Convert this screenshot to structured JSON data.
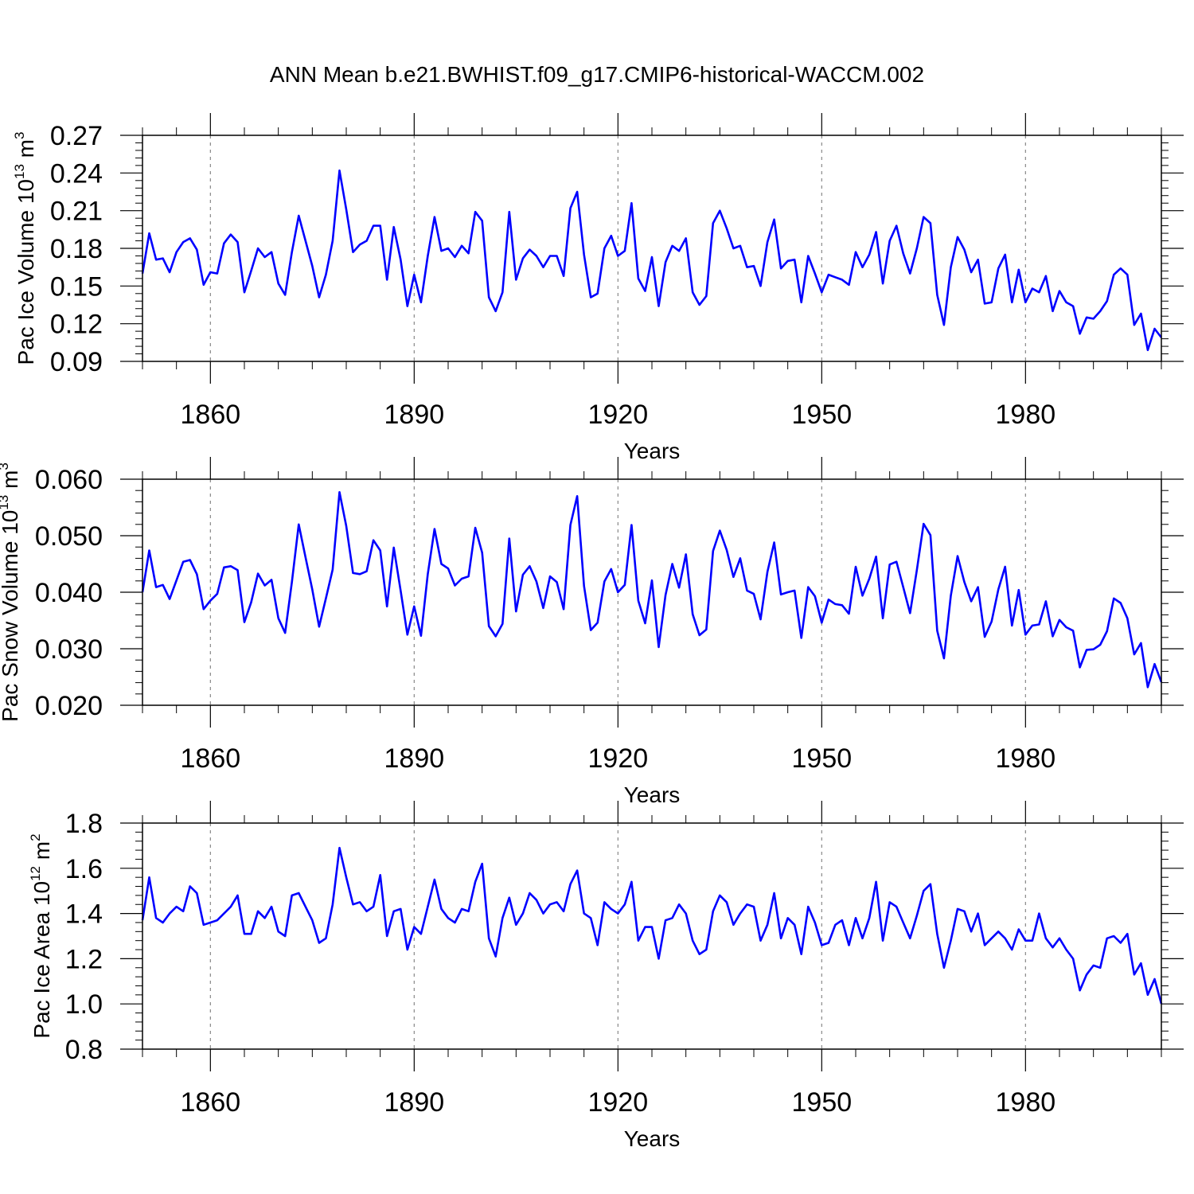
{
  "title": "ANN Mean b.e21.BWHIST.f09_g17.CMIP6-historical-WACCM.002",
  "line_color": "#0000ff",
  "chart_data": [
    {
      "type": "line",
      "ylabel": "Pac Ice Volume 10",
      "ylabel_exp": "13",
      "ylabel_unit": "m",
      "ylabel_unit_exp": "3",
      "xlabel": "Years",
      "xlim": [
        1850,
        2000
      ],
      "ylim": [
        0.09,
        0.27
      ],
      "yticks": [
        0.09,
        0.12,
        0.15,
        0.18,
        0.21,
        0.24,
        0.27
      ],
      "ytick_labels": [
        "0.09",
        "0.12",
        "0.15",
        "0.18",
        "0.21",
        "0.24",
        "0.27"
      ],
      "xticks": [
        1860,
        1890,
        1920,
        1950,
        1980
      ],
      "xtick_labels": [
        "1860",
        "1890",
        "1920",
        "1950",
        "1980"
      ],
      "x_start": 1850,
      "values": [
        0.16,
        0.192,
        0.171,
        0.172,
        0.161,
        0.177,
        0.185,
        0.188,
        0.179,
        0.151,
        0.161,
        0.16,
        0.184,
        0.191,
        0.185,
        0.145,
        0.162,
        0.18,
        0.173,
        0.177,
        0.152,
        0.143,
        0.177,
        0.206,
        0.186,
        0.166,
        0.141,
        0.159,
        0.186,
        0.242,
        0.211,
        0.177,
        0.183,
        0.186,
        0.198,
        0.198,
        0.155,
        0.197,
        0.171,
        0.134,
        0.159,
        0.137,
        0.174,
        0.205,
        0.178,
        0.18,
        0.173,
        0.182,
        0.176,
        0.209,
        0.202,
        0.141,
        0.13,
        0.145,
        0.209,
        0.155,
        0.172,
        0.179,
        0.174,
        0.165,
        0.174,
        0.174,
        0.158,
        0.212,
        0.225,
        0.175,
        0.141,
        0.144,
        0.18,
        0.19,
        0.174,
        0.178,
        0.216,
        0.156,
        0.146,
        0.173,
        0.134,
        0.169,
        0.182,
        0.178,
        0.188,
        0.145,
        0.135,
        0.142,
        0.2,
        0.21,
        0.196,
        0.18,
        0.182,
        0.165,
        0.166,
        0.15,
        0.185,
        0.203,
        0.164,
        0.17,
        0.171,
        0.137,
        0.174,
        0.16,
        0.145,
        0.159,
        0.157,
        0.155,
        0.151,
        0.177,
        0.165,
        0.175,
        0.193,
        0.152,
        0.186,
        0.198,
        0.176,
        0.16,
        0.18,
        0.205,
        0.2,
        0.143,
        0.119,
        0.165,
        0.189,
        0.179,
        0.161,
        0.171,
        0.136,
        0.137,
        0.164,
        0.175,
        0.137,
        0.163,
        0.137,
        0.148,
        0.145,
        0.158,
        0.13,
        0.146,
        0.137,
        0.134,
        0.112,
        0.125,
        0.124,
        0.13,
        0.138,
        0.159,
        0.164,
        0.159,
        0.119,
        0.128,
        0.099,
        0.116,
        0.109
      ]
    },
    {
      "type": "line",
      "ylabel": "Pac Snow Volume 10",
      "ylabel_exp": "13",
      "ylabel_unit": "m",
      "ylabel_unit_exp": "3",
      "xlabel": "Years",
      "xlim": [
        1850,
        2000
      ],
      "ylim": [
        0.02,
        0.06
      ],
      "yticks": [
        0.02,
        0.03,
        0.04,
        0.05,
        0.06
      ],
      "ytick_labels": [
        "0.020",
        "0.030",
        "0.040",
        "0.050",
        "0.060"
      ],
      "xticks": [
        1860,
        1890,
        1920,
        1950,
        1980
      ],
      "xtick_labels": [
        "1860",
        "1890",
        "1920",
        "1950",
        "1980"
      ],
      "x_start": 1850,
      "values": [
        0.04,
        0.0474,
        0.0409,
        0.0413,
        0.0388,
        0.0421,
        0.0454,
        0.0457,
        0.0432,
        0.037,
        0.0385,
        0.0397,
        0.0444,
        0.0446,
        0.0439,
        0.0347,
        0.0382,
        0.0433,
        0.0412,
        0.0422,
        0.0354,
        0.0328,
        0.0418,
        0.052,
        0.0462,
        0.0405,
        0.0339,
        0.0389,
        0.044,
        0.0577,
        0.0517,
        0.0434,
        0.0432,
        0.0437,
        0.0492,
        0.0474,
        0.0375,
        0.0479,
        0.0403,
        0.0325,
        0.0375,
        0.0323,
        0.0432,
        0.0512,
        0.045,
        0.0442,
        0.0412,
        0.0424,
        0.0428,
        0.0514,
        0.047,
        0.034,
        0.0322,
        0.0344,
        0.0495,
        0.0366,
        0.0431,
        0.0446,
        0.0419,
        0.0372,
        0.0428,
        0.0418,
        0.037,
        0.0519,
        0.057,
        0.0411,
        0.0333,
        0.0346,
        0.0419,
        0.0441,
        0.04,
        0.0413,
        0.0519,
        0.0385,
        0.0345,
        0.0421,
        0.0303,
        0.0395,
        0.045,
        0.0408,
        0.0467,
        0.0361,
        0.0324,
        0.0334,
        0.0473,
        0.0509,
        0.0475,
        0.0427,
        0.046,
        0.0403,
        0.0397,
        0.0352,
        0.0436,
        0.0488,
        0.0396,
        0.04,
        0.0403,
        0.0319,
        0.0409,
        0.0393,
        0.0346,
        0.0387,
        0.0379,
        0.0377,
        0.0362,
        0.0445,
        0.0394,
        0.0424,
        0.0463,
        0.0354,
        0.0449,
        0.0454,
        0.0409,
        0.0363,
        0.0439,
        0.0521,
        0.0501,
        0.0332,
        0.0283,
        0.0394,
        0.0464,
        0.0418,
        0.0384,
        0.0409,
        0.0321,
        0.0348,
        0.0405,
        0.0445,
        0.0341,
        0.0404,
        0.0325,
        0.0341,
        0.0343,
        0.0384,
        0.0322,
        0.0351,
        0.0338,
        0.0332,
        0.0267,
        0.0298,
        0.0299,
        0.0307,
        0.0331,
        0.0389,
        0.0381,
        0.0354,
        0.029,
        0.031,
        0.0232,
        0.0273,
        0.0241
      ]
    },
    {
      "type": "line",
      "ylabel": "Pac Ice Area 10",
      "ylabel_exp": "12",
      "ylabel_unit": "m",
      "ylabel_unit_exp": "2",
      "xlabel": "Years",
      "xlim": [
        1850,
        2000
      ],
      "ylim": [
        0.8,
        1.8
      ],
      "yticks": [
        0.8,
        1.0,
        1.2,
        1.4,
        1.6,
        1.8
      ],
      "ytick_labels": [
        "0.8",
        "1.0",
        "1.2",
        "1.4",
        "1.6",
        "1.8"
      ],
      "xticks": [
        1860,
        1890,
        1920,
        1950,
        1980
      ],
      "xtick_labels": [
        "1860",
        "1890",
        "1920",
        "1950",
        "1980"
      ],
      "x_start": 1850,
      "values": [
        1.37,
        1.56,
        1.38,
        1.36,
        1.4,
        1.43,
        1.41,
        1.52,
        1.49,
        1.35,
        1.36,
        1.37,
        1.4,
        1.43,
        1.48,
        1.31,
        1.31,
        1.41,
        1.38,
        1.43,
        1.32,
        1.3,
        1.48,
        1.49,
        1.43,
        1.37,
        1.27,
        1.29,
        1.44,
        1.69,
        1.56,
        1.44,
        1.45,
        1.41,
        1.43,
        1.57,
        1.3,
        1.41,
        1.42,
        1.24,
        1.34,
        1.31,
        1.43,
        1.55,
        1.42,
        1.38,
        1.36,
        1.42,
        1.41,
        1.54,
        1.62,
        1.29,
        1.21,
        1.38,
        1.47,
        1.35,
        1.4,
        1.49,
        1.46,
        1.4,
        1.44,
        1.45,
        1.41,
        1.53,
        1.59,
        1.4,
        1.38,
        1.26,
        1.45,
        1.42,
        1.4,
        1.44,
        1.54,
        1.28,
        1.34,
        1.34,
        1.2,
        1.37,
        1.38,
        1.44,
        1.4,
        1.28,
        1.22,
        1.24,
        1.41,
        1.48,
        1.45,
        1.35,
        1.4,
        1.44,
        1.43,
        1.28,
        1.35,
        1.49,
        1.29,
        1.38,
        1.35,
        1.22,
        1.43,
        1.36,
        1.26,
        1.27,
        1.35,
        1.37,
        1.26,
        1.38,
        1.29,
        1.38,
        1.54,
        1.28,
        1.45,
        1.43,
        1.36,
        1.29,
        1.39,
        1.5,
        1.53,
        1.31,
        1.16,
        1.28,
        1.42,
        1.41,
        1.32,
        1.4,
        1.26,
        1.29,
        1.32,
        1.29,
        1.24,
        1.33,
        1.28,
        1.28,
        1.4,
        1.29,
        1.25,
        1.29,
        1.24,
        1.2,
        1.06,
        1.13,
        1.17,
        1.16,
        1.29,
        1.3,
        1.27,
        1.31,
        1.13,
        1.18,
        1.04,
        1.11,
        1.0
      ]
    }
  ]
}
